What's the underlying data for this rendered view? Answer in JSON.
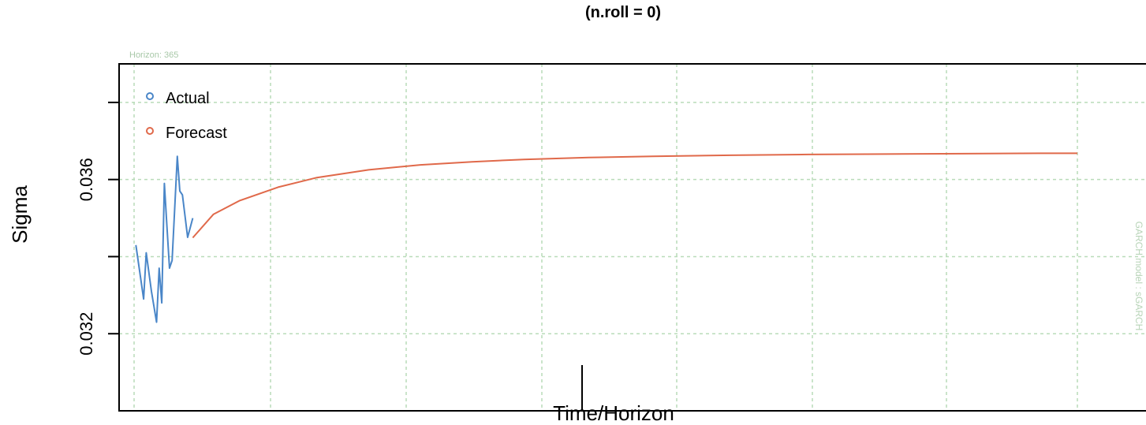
{
  "chart_data": {
    "type": "line",
    "title": "(n.roll = 0)",
    "xlabel": "Time/Horizon",
    "ylabel": "Sigma",
    "yticks": [
      0.032,
      0.034,
      0.036,
      0.038
    ],
    "ytick_labels": [
      "0.032",
      "",
      "0.036",
      ""
    ],
    "ylim": [
      0.03,
      0.039
    ],
    "xlim": [
      -1,
      364
    ],
    "grid": true,
    "legend_position": "top-left",
    "top_note": "Horizon: 365",
    "side_note": "GARCH model : sGARCH",
    "colors": {
      "actual": "#4a86c8",
      "forecast": "#e0694a",
      "grid": "#b9dcb9",
      "note": "#a8c8a8"
    },
    "series": [
      {
        "name": "Actual",
        "x": [
          0,
          3,
          4,
          6,
          8,
          9,
          10,
          11,
          12,
          13,
          14,
          16,
          17,
          18,
          20,
          22
        ],
        "values": [
          0.0343,
          0.0329,
          0.0341,
          0.0331,
          0.0323,
          0.0337,
          0.0328,
          0.0359,
          0.0348,
          0.0337,
          0.0339,
          0.0366,
          0.0357,
          0.0356,
          0.0345,
          0.035
        ]
      },
      {
        "name": "Forecast",
        "x": [
          22,
          30,
          40,
          55,
          70,
          90,
          110,
          130,
          150,
          175,
          200,
          230,
          260,
          290,
          320,
          350,
          364
        ],
        "values": [
          0.03449,
          0.0351,
          0.03545,
          0.0358,
          0.03605,
          0.03625,
          0.03638,
          0.03646,
          0.03652,
          0.03657,
          0.0366,
          0.03663,
          0.03665,
          0.03666,
          0.03667,
          0.03668,
          0.03668
        ]
      }
    ]
  }
}
